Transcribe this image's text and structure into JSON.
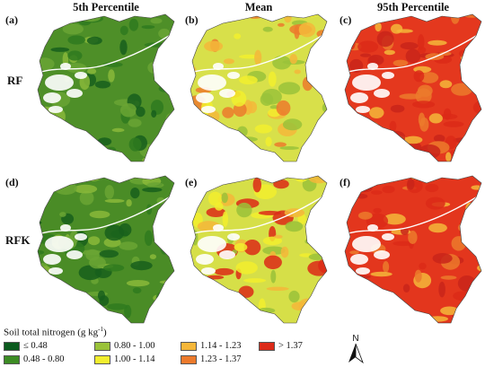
{
  "columns": [
    "5th Percentile",
    "Mean",
    "95th Percentile"
  ],
  "rows": [
    "RF",
    "RFK"
  ],
  "panel_labels": [
    "(a)",
    "(b)",
    "(c)",
    "(d)",
    "(e)",
    "(f)"
  ],
  "legend": {
    "title_main": "Soil total nitrogen (g kg",
    "title_sup": "-1",
    "title_end": ")",
    "classes": [
      {
        "label": "≤ 0.48",
        "color": "#0b5a1e"
      },
      {
        "label": "0.48 - 0.80",
        "color": "#3c8c24"
      },
      {
        "label": "0.80 - 1.00",
        "color": "#9ac23a"
      },
      {
        "label": "1.00 - 1.14",
        "color": "#f2ee2e"
      },
      {
        "label": "1.14 - 1.23",
        "color": "#f5b73a"
      },
      {
        "label": "1.23 - 1.37",
        "color": "#ec7a2c"
      },
      {
        "label": "> 1.37",
        "color": "#dc2a18"
      }
    ]
  },
  "north_label": "N",
  "panel_palettes": {
    "a": {
      "base": "#4e8f28",
      "patches": [
        "#2f7a1e",
        "#6aa434",
        "#175f1c",
        "#8ab93a"
      ]
    },
    "b": {
      "base": "#d8e04a",
      "patches": [
        "#f2ee2e",
        "#9ac23a",
        "#f5b73a",
        "#ec7a2c"
      ]
    },
    "c": {
      "base": "#e4381e",
      "patches": [
        "#dc2a18",
        "#ec7a2c",
        "#f5b73a",
        "#c9241a"
      ]
    },
    "d": {
      "base": "#4a8c26",
      "patches": [
        "#2f7a1e",
        "#6aa434",
        "#175f1c",
        "#8ab93a"
      ]
    },
    "e": {
      "base": "#d6df48",
      "patches": [
        "#f2ee2e",
        "#9ac23a",
        "#f5b73a",
        "#dc2a18"
      ]
    },
    "f": {
      "base": "#e3361d",
      "patches": [
        "#dc2a18",
        "#ec7a2c",
        "#f5b73a",
        "#c9241a"
      ]
    }
  }
}
